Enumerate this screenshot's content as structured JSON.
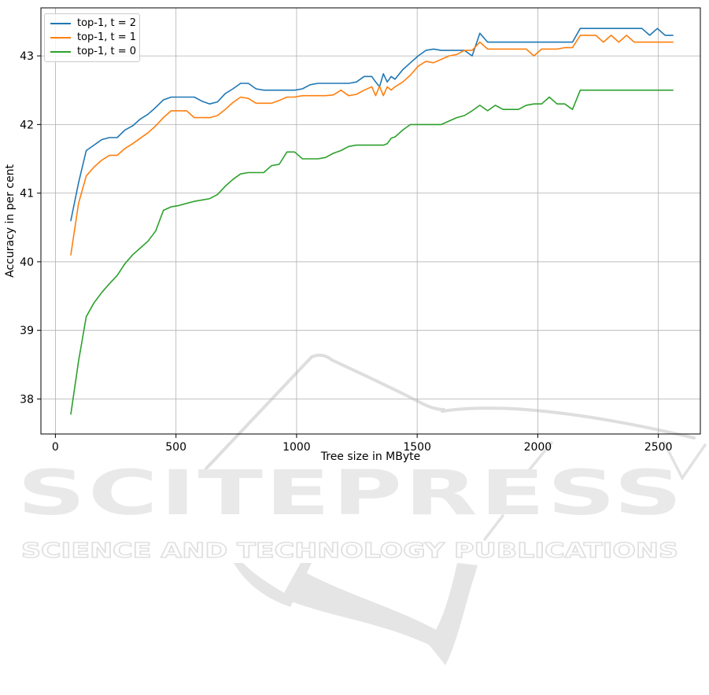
{
  "figure": {
    "watermark": {
      "title": "SCITEPRESS",
      "subtitle": "SCIENCE AND TECHNOLOGY PUBLICATIONS",
      "fill_color": "#e9e9e9",
      "stroke_color": "#e0e0e0"
    }
  },
  "chart_data": {
    "type": "line",
    "title": "",
    "xlabel": "Tree size in MByte",
    "ylabel": "Accuracy in per cent",
    "xlim": [
      -60,
      2674
    ],
    "ylim": [
      37.49,
      43.7
    ],
    "x_ticks": [
      0,
      500,
      1000,
      1500,
      2000,
      2500
    ],
    "y_ticks": [
      38,
      39,
      40,
      41,
      42,
      43
    ],
    "grid": true,
    "grid_color": "#b0b0b0",
    "legend_position": "upper left",
    "x": [
      64,
      96,
      128,
      160,
      192,
      224,
      256,
      288,
      320,
      352,
      384,
      416,
      448,
      480,
      512,
      544,
      576,
      608,
      640,
      672,
      704,
      736,
      768,
      800,
      832,
      864,
      896,
      928,
      960,
      992,
      1024,
      1056,
      1088,
      1120,
      1152,
      1184,
      1216,
      1248,
      1280,
      1312,
      1328,
      1344,
      1360,
      1376,
      1392,
      1408,
      1440,
      1472,
      1504,
      1536,
      1568,
      1600,
      1632,
      1664,
      1696,
      1728,
      1760,
      1792,
      1824,
      1856,
      1888,
      1920,
      1952,
      1984,
      2016,
      2048,
      2080,
      2112,
      2144,
      2176,
      2208,
      2240,
      2272,
      2304,
      2336,
      2368,
      2400,
      2432,
      2464,
      2496,
      2528,
      2560
    ],
    "series": [
      {
        "name": "top-1, t = 2",
        "color": "#1f77b4",
        "values": [
          40.6,
          41.15,
          41.62,
          41.7,
          41.78,
          41.81,
          41.81,
          41.92,
          41.98,
          42.08,
          42.15,
          42.25,
          42.36,
          42.4,
          42.4,
          42.4,
          42.4,
          42.34,
          42.3,
          42.33,
          42.45,
          42.52,
          42.6,
          42.6,
          42.52,
          42.5,
          42.5,
          42.5,
          42.5,
          42.5,
          42.52,
          42.58,
          42.6,
          42.6,
          42.6,
          42.6,
          42.6,
          42.62,
          42.7,
          42.7,
          42.62,
          42.55,
          42.74,
          42.62,
          42.7,
          42.66,
          42.8,
          42.9,
          43.0,
          43.08,
          43.1,
          43.08,
          43.08,
          43.08,
          43.08,
          43.0,
          43.33,
          43.2,
          43.2,
          43.2,
          43.2,
          43.2,
          43.2,
          43.2,
          43.2,
          43.2,
          43.2,
          43.2,
          43.2,
          43.4,
          43.4,
          43.4,
          43.4,
          43.4,
          43.4,
          43.4,
          43.4,
          43.4,
          43.3,
          43.4,
          43.3,
          43.3
        ]
      },
      {
        "name": "top-1, t = 1",
        "color": "#ff7f0e",
        "values": [
          40.1,
          40.85,
          41.25,
          41.38,
          41.48,
          41.55,
          41.55,
          41.65,
          41.72,
          41.8,
          41.88,
          41.98,
          42.1,
          42.2,
          42.2,
          42.2,
          42.1,
          42.1,
          42.1,
          42.13,
          42.22,
          42.32,
          42.4,
          42.38,
          42.31,
          42.31,
          42.31,
          42.35,
          42.4,
          42.4,
          42.42,
          42.42,
          42.42,
          42.42,
          42.43,
          42.5,
          42.42,
          42.44,
          42.5,
          42.55,
          42.42,
          42.56,
          42.42,
          42.55,
          42.5,
          42.55,
          42.62,
          42.72,
          42.85,
          42.92,
          42.9,
          42.95,
          43.0,
          43.02,
          43.08,
          43.08,
          43.2,
          43.1,
          43.1,
          43.1,
          43.1,
          43.1,
          43.1,
          43.0,
          43.1,
          43.1,
          43.1,
          43.12,
          43.12,
          43.3,
          43.3,
          43.3,
          43.2,
          43.3,
          43.2,
          43.3,
          43.2,
          43.2,
          43.2,
          43.2,
          43.2,
          43.2
        ]
      },
      {
        "name": "top-1, t = 0",
        "color": "#2ca02c",
        "values": [
          37.78,
          38.55,
          39.2,
          39.4,
          39.55,
          39.68,
          39.8,
          39.97,
          40.1,
          40.2,
          40.3,
          40.45,
          40.75,
          40.8,
          40.82,
          40.85,
          40.88,
          40.9,
          40.92,
          40.98,
          41.1,
          41.2,
          41.28,
          41.3,
          41.3,
          41.3,
          41.4,
          41.42,
          41.6,
          41.6,
          41.5,
          41.5,
          41.5,
          41.52,
          41.58,
          41.62,
          41.68,
          41.7,
          41.7,
          41.7,
          41.7,
          41.7,
          41.7,
          41.72,
          41.8,
          41.82,
          41.92,
          42.0,
          42.0,
          42.0,
          42.0,
          42.0,
          42.05,
          42.1,
          42.13,
          42.2,
          42.28,
          42.2,
          42.28,
          42.22,
          42.22,
          42.22,
          42.28,
          42.3,
          42.3,
          42.4,
          42.3,
          42.3,
          42.22,
          42.5,
          42.5,
          42.5,
          42.5,
          42.5,
          42.5,
          42.5,
          42.5,
          42.5,
          42.5,
          42.5,
          42.5,
          42.5
        ]
      }
    ]
  }
}
